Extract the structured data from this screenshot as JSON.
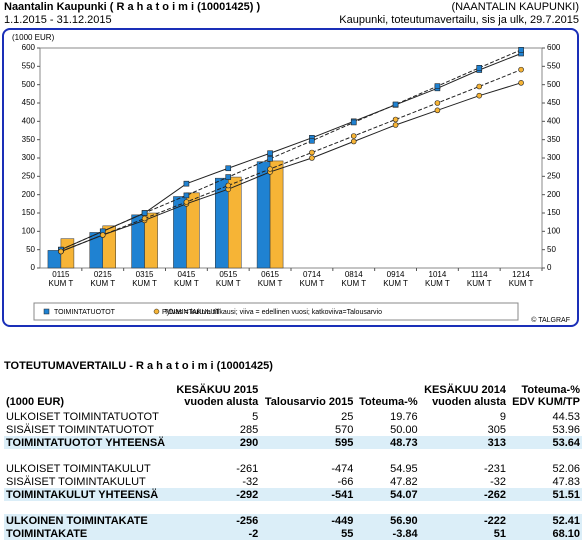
{
  "header": {
    "title": "Naantalin Kaupunki ( R a h a t o i m i (10001425) )",
    "period": "1.1.2015 - 31.12.2015",
    "org": "(NAANTALIN KAUPUNKI)",
    "report": "Kaupunki, toteutumavertailu, sis ja ulk, 29.7.2015"
  },
  "chart_data": {
    "type": "bar",
    "unit_label": "(1000 EUR)",
    "categories": [
      "0115 KUM T",
      "0215 KUM T",
      "0315 KUM T",
      "0415 KUM T",
      "0515 KUM T",
      "0615 KUM T",
      "0714 KUM T",
      "0814 KUM T",
      "0914 KUM T",
      "1014 KUM T",
      "1114 KUM T",
      "1214 KUM T"
    ],
    "series": [
      {
        "name": "TOIMINTATUOTOT",
        "color": "#1f82d2",
        "values": [
          48,
          97,
          145,
          195,
          245,
          290,
          null,
          null,
          null,
          null,
          null,
          null
        ]
      },
      {
        "name": "TOIMINTAKULUT",
        "color": "#f6b436",
        "values": [
          80,
          115,
          150,
          205,
          248,
          292,
          null,
          null,
          null,
          null,
          null,
          null
        ]
      },
      {
        "type": "line",
        "color": "#222222",
        "dash": false,
        "marker": "square",
        "marker_color": "#1f82d2",
        "values": [
          50,
          100,
          150,
          230,
          272,
          313,
          355,
          400,
          445,
          490,
          540,
          585
        ]
      },
      {
        "type": "line",
        "color": "#222222",
        "dash": true,
        "marker": "square",
        "marker_color": "#1f82d2",
        "values": [
          50,
          100,
          150,
          198,
          248,
          298,
          347,
          397,
          446,
          496,
          546,
          595
        ]
      },
      {
        "type": "line",
        "color": "#222222",
        "dash": false,
        "marker": "circle",
        "marker_color": "#f6b436",
        "values": [
          45,
          90,
          130,
          175,
          215,
          262,
          300,
          345,
          390,
          430,
          470,
          505
        ]
      },
      {
        "type": "line",
        "color": "#222222",
        "dash": true,
        "marker": "circle",
        "marker_color": "#f6b436",
        "values": [
          45,
          90,
          135,
          180,
          225,
          270,
          315,
          360,
          405,
          450,
          495,
          541
        ]
      }
    ],
    "ylim": [
      0,
      600
    ],
    "yticks": [
      0,
      50,
      100,
      150,
      200,
      250,
      300,
      350,
      400,
      450,
      500,
      550,
      600
    ],
    "legend_note": "Pylväs = kuluva tilikausi; viiva = edellinen vuosi; katkoviiva=Talousarvio",
    "copyright": "© TALGRAF"
  },
  "table": {
    "title": "TOTEUTUMAVERTAILU - R a h a t o i m i (10001425)",
    "columns": [
      [
        "(1000 EUR)"
      ],
      [
        "KESÄKUU 2015",
        "vuoden alusta"
      ],
      [
        "Talousarvio 2015"
      ],
      [
        "Toteuma-%"
      ],
      [
        "KESÄKUU 2014",
        "vuoden alusta"
      ],
      [
        "Toteuma-%",
        "EDV KUM/TP"
      ]
    ],
    "sections": [
      [
        {
          "cells": [
            "ULKOISET TOIMINTATUOTOT",
            "5",
            "25",
            "19.76",
            "9",
            "44.53"
          ],
          "highlight": false
        },
        {
          "cells": [
            "SISÄISET TOIMINTATUOTOT",
            "285",
            "570",
            "50.00",
            "305",
            "53.96"
          ],
          "highlight": false
        },
        {
          "cells": [
            "TOIMINTATUOTOT YHTEENSÄ",
            "290",
            "595",
            "48.73",
            "313",
            "53.64"
          ],
          "highlight": true
        }
      ],
      [
        {
          "cells": [
            "ULKOISET TOIMINTAKULUT",
            "-261",
            "-474",
            "54.95",
            "-231",
            "52.06"
          ],
          "highlight": false
        },
        {
          "cells": [
            "SISÄISET TOIMINTAKULUT",
            "-32",
            "-66",
            "47.82",
            "-32",
            "47.83"
          ],
          "highlight": false
        },
        {
          "cells": [
            "TOIMINTAKULUT YHTEENSÄ",
            "-292",
            "-541",
            "54.07",
            "-262",
            "51.51"
          ],
          "highlight": true
        }
      ],
      [
        {
          "cells": [
            "ULKOINEN TOIMINTAKATE",
            "-256",
            "-449",
            "56.90",
            "-222",
            "52.41"
          ],
          "highlight": true
        },
        {
          "cells": [
            "TOIMINTAKATE",
            "-2",
            "55",
            "-3.84",
            "51",
            "68.10"
          ],
          "highlight": true
        }
      ]
    ]
  }
}
